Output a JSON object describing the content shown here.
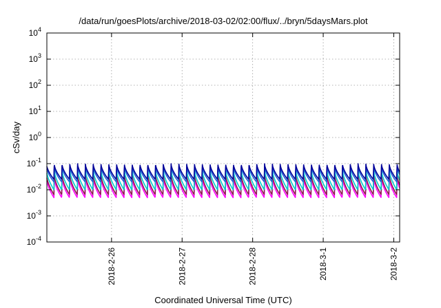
{
  "chart_data": {
    "type": "line",
    "title": "/data/run/goesPlots/archive/2018-03-02/02:00/flux/../bryn/5daysMars.plot",
    "xlabel": "Coordinated Universal Time (UTC)",
    "ylabel": "cSv/day",
    "yscale": "log",
    "ylim_exponents": [
      -4,
      4
    ],
    "y_ticks": [
      {
        "base": "10",
        "exp": "4"
      },
      {
        "base": "10",
        "exp": "3"
      },
      {
        "base": "10",
        "exp": "2"
      },
      {
        "base": "10",
        "exp": "1"
      },
      {
        "base": "10",
        "exp": "0"
      },
      {
        "base": "10",
        "exp": "-1"
      },
      {
        "base": "10",
        "exp": "-2"
      },
      {
        "base": "10",
        "exp": "-3"
      },
      {
        "base": "10",
        "exp": "-4"
      }
    ],
    "x_start": "2018-02-25T02:00",
    "x_end": "2018-03-02T02:00",
    "x_ticks": [
      {
        "label": "2018-2-26",
        "time": "2018-02-26T00:00"
      },
      {
        "label": "2018-2-27",
        "time": "2018-02-27T00:00"
      },
      {
        "label": "2018-2-28",
        "time": "2018-02-28T00:00"
      },
      {
        "label": "2018-3-1",
        "time": "2018-03-01T00:00"
      },
      {
        "label": "2018-3-2",
        "time": "2018-03-02T00:00"
      }
    ],
    "grid": true,
    "pulse_period_hours": 2.65,
    "series": [
      {
        "color": "#ff00ff",
        "peak": 0.03,
        "trough": 0.005
      },
      {
        "color": "#8b1a4b",
        "peak": 0.04,
        "trough": 0.0065
      },
      {
        "color": "#00cccc",
        "peak": 0.06,
        "trough": 0.01
      },
      {
        "color": "#1f5fd6",
        "peak": 0.08,
        "trough": 0.02
      },
      {
        "color": "#000099",
        "peak": 0.1,
        "trough": 0.025
      }
    ]
  }
}
